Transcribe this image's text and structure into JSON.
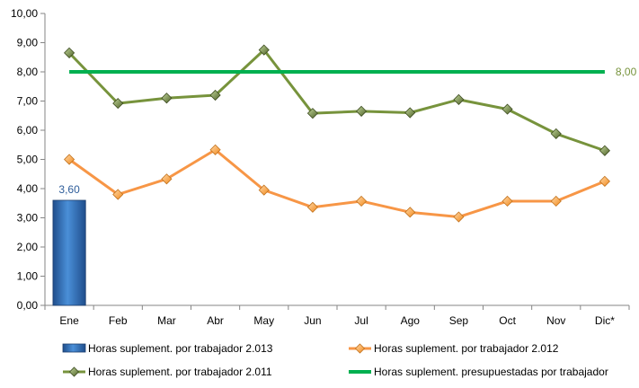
{
  "chart_data": {
    "type": "line",
    "categories": [
      "Ene",
      "Feb",
      "Mar",
      "Abr",
      "May",
      "Jun",
      "Jul",
      "Ago",
      "Sep",
      "Oct",
      "Nov",
      "Dic*"
    ],
    "y_ticks": [
      "0,00",
      "1,00",
      "2,00",
      "3,00",
      "4,00",
      "5,00",
      "6,00",
      "7,00",
      "8,00",
      "9,00",
      "10,00"
    ],
    "ylim": [
      0,
      10
    ],
    "grid": false,
    "legend_position": "bottom",
    "series": [
      {
        "name": "Horas suplement. por trabajador 2.013",
        "kind": "bar",
        "color": "#2e6fbd",
        "values": [
          3.6,
          null,
          null,
          null,
          null,
          null,
          null,
          null,
          null,
          null,
          null,
          null
        ],
        "data_labels": [
          "3,60"
        ]
      },
      {
        "name": "Horas suplement. por trabajador 2.012",
        "kind": "line",
        "color": "#f79646",
        "values": [
          5.0,
          3.8,
          4.33,
          5.33,
          3.95,
          3.36,
          3.57,
          3.19,
          3.03,
          3.57,
          3.57,
          4.25
        ]
      },
      {
        "name": "Horas suplement. por trabajador 2.011",
        "kind": "line",
        "color": "#77933c",
        "values": [
          8.65,
          6.92,
          7.1,
          7.2,
          8.75,
          6.58,
          6.65,
          6.6,
          7.05,
          6.72,
          5.88,
          5.3
        ]
      },
      {
        "name": "Horas suplement. presupuestadas por trabajador",
        "kind": "line",
        "color": "#00b050",
        "values": [
          8.0,
          8.0,
          8.0,
          8.0,
          8.0,
          8.0,
          8.0,
          8.0,
          8.0,
          8.0,
          8.0,
          8.0
        ],
        "data_labels": [
          "8,00"
        ]
      }
    ]
  }
}
